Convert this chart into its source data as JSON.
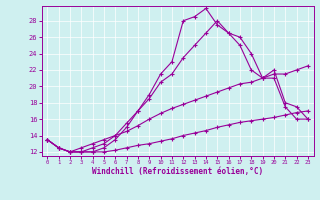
{
  "xlabel": "Windchill (Refroidissement éolien,°C)",
  "bg_color": "#cff0f0",
  "line_color": "#990099",
  "xlim": [
    -0.5,
    23.5
  ],
  "ylim": [
    11.5,
    29.8
  ],
  "yticks": [
    12,
    14,
    16,
    18,
    20,
    22,
    24,
    26,
    28
  ],
  "xticks": [
    0,
    1,
    2,
    3,
    4,
    5,
    6,
    7,
    8,
    9,
    10,
    11,
    12,
    13,
    14,
    15,
    16,
    17,
    18,
    19,
    20,
    21,
    22,
    23
  ],
  "line1_x": [
    0,
    1,
    2,
    3,
    4,
    5,
    6,
    7,
    8,
    9,
    10,
    11,
    12,
    13,
    14,
    15,
    16,
    17,
    18,
    19,
    20,
    21,
    22,
    23
  ],
  "line1_y": [
    13.5,
    12.5,
    12.0,
    12.0,
    12.0,
    12.5,
    13.5,
    15.0,
    17.0,
    19.0,
    21.5,
    23.0,
    28.0,
    28.5,
    29.5,
    27.5,
    26.5,
    25.0,
    22.0,
    21.0,
    22.0,
    18.0,
    17.5,
    16.0
  ],
  "line2_x": [
    0,
    1,
    2,
    3,
    4,
    5,
    6,
    7,
    8,
    9,
    10,
    11,
    12,
    13,
    14,
    15,
    16,
    17,
    18,
    19,
    20,
    21,
    22,
    23
  ],
  "line2_y": [
    13.5,
    12.5,
    12.0,
    12.0,
    12.5,
    13.0,
    14.0,
    15.5,
    17.0,
    18.5,
    20.5,
    21.5,
    23.5,
    25.0,
    26.5,
    28.0,
    26.5,
    26.0,
    24.0,
    21.0,
    21.0,
    17.5,
    16.0,
    16.0
  ],
  "line3_x": [
    0,
    1,
    2,
    3,
    4,
    5,
    6,
    7,
    8,
    9,
    10,
    11,
    12,
    13,
    14,
    15,
    16,
    17,
    18,
    19,
    20,
    21,
    22,
    23
  ],
  "line3_y": [
    13.5,
    12.5,
    12.0,
    12.5,
    13.0,
    13.5,
    14.0,
    14.5,
    15.2,
    16.0,
    16.7,
    17.3,
    17.8,
    18.3,
    18.8,
    19.3,
    19.8,
    20.3,
    20.5,
    21.0,
    21.5,
    21.5,
    22.0,
    22.5
  ],
  "line4_x": [
    0,
    1,
    2,
    3,
    4,
    5,
    6,
    7,
    8,
    9,
    10,
    11,
    12,
    13,
    14,
    15,
    16,
    17,
    18,
    19,
    20,
    21,
    22,
    23
  ],
  "line4_y": [
    13.5,
    12.5,
    12.0,
    12.0,
    12.0,
    12.0,
    12.2,
    12.5,
    12.8,
    13.0,
    13.3,
    13.6,
    14.0,
    14.3,
    14.6,
    15.0,
    15.3,
    15.6,
    15.8,
    16.0,
    16.2,
    16.5,
    16.8,
    17.0
  ]
}
